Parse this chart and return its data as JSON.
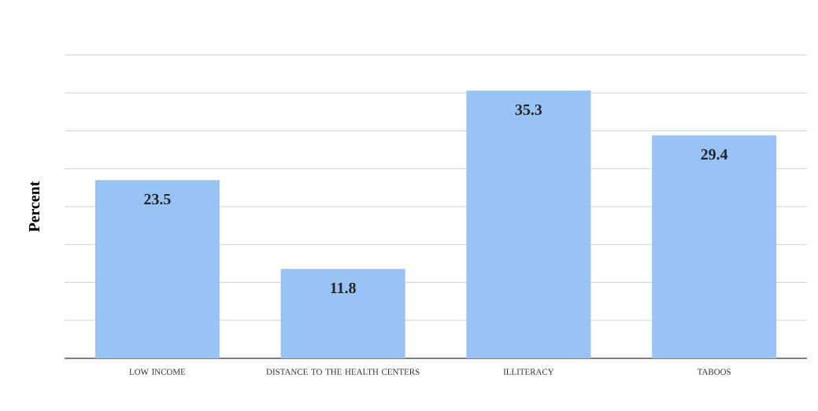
{
  "chart_data": {
    "type": "bar",
    "ylabel": "Percent",
    "categories": [
      "LOW INCOME",
      "DISTANCE TO THE HEALTH CENTERS",
      "ILLITERACY",
      "TABOOS"
    ],
    "values": [
      23.5,
      11.8,
      35.3,
      29.4
    ],
    "color": "#9ac3f5",
    "ylim": [
      0,
      40
    ],
    "yticks": [
      {
        "value": 0,
        "label": null
      },
      {
        "value": 5,
        "label": null
      },
      {
        "value": 10,
        "label": null
      },
      {
        "value": 15,
        "label": null
      },
      {
        "value": 20,
        "label": null
      },
      {
        "value": 25,
        "label": null
      },
      {
        "value": 30,
        "label": null
      },
      {
        "value": 35,
        "label": null
      },
      {
        "value": 40,
        "label": null
      }
    ],
    "tick_labels": "x",
    "grid": "y",
    "data_labels": true
  }
}
